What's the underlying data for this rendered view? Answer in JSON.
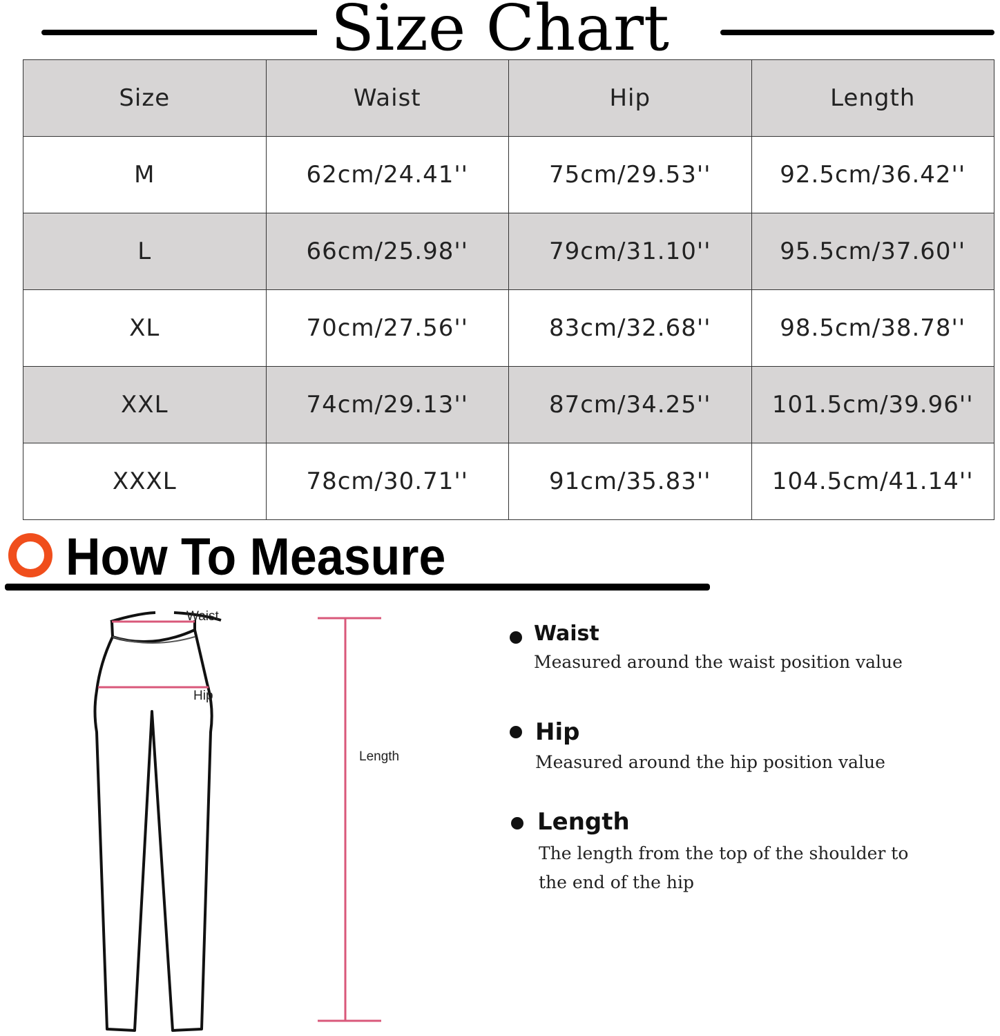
{
  "title": "Size Chart",
  "table": {
    "headers": [
      "Size",
      "Waist",
      "Hip",
      "Length"
    ],
    "rows": [
      [
        "M",
        "62cm/24.41''",
        "75cm/29.53''",
        "92.5cm/36.42''"
      ],
      [
        "L",
        "66cm/25.98''",
        "79cm/31.10''",
        "95.5cm/37.60''"
      ],
      [
        "XL",
        "70cm/27.56''",
        "83cm/32.68''",
        "98.5cm/38.78''"
      ],
      [
        "XXL",
        "74cm/29.13''",
        "87cm/34.25''",
        "101.5cm/39.96''"
      ],
      [
        "XXXL",
        "78cm/30.71''",
        "91cm/35.83''",
        "104.5cm/41.14''"
      ]
    ]
  },
  "how_to_measure": {
    "heading": "How To Measure",
    "diagram_labels": {
      "waist": "Waist",
      "hip": "Hip",
      "length": "Length"
    },
    "items": [
      {
        "label": "Waist",
        "desc": "Measured around the waist position value"
      },
      {
        "label": "Hip",
        "desc": "Measured around the  hip position value"
      },
      {
        "label": "Length",
        "desc1": "The length from the top of the shoulder to",
        "desc2": "the end of the hip"
      }
    ]
  },
  "colors": {
    "header_bg": "#d7d5d5",
    "accent_circle": "#f04e1c",
    "measure_line": "#d9587a"
  }
}
